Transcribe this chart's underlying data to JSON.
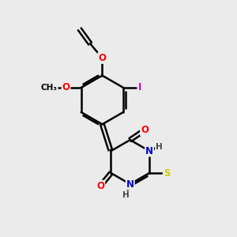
{
  "bg_color": "#ebebeb",
  "bond_color": "#000000",
  "bond_width": 1.8,
  "atom_colors": {
    "O": "#ff0000",
    "N": "#0000cc",
    "S": "#cccc00",
    "I": "#cc00cc",
    "H": "#444444",
    "C": "#000000"
  },
  "font_size": 8.5,
  "fig_size": [
    3.0,
    3.0
  ],
  "dpi": 100
}
